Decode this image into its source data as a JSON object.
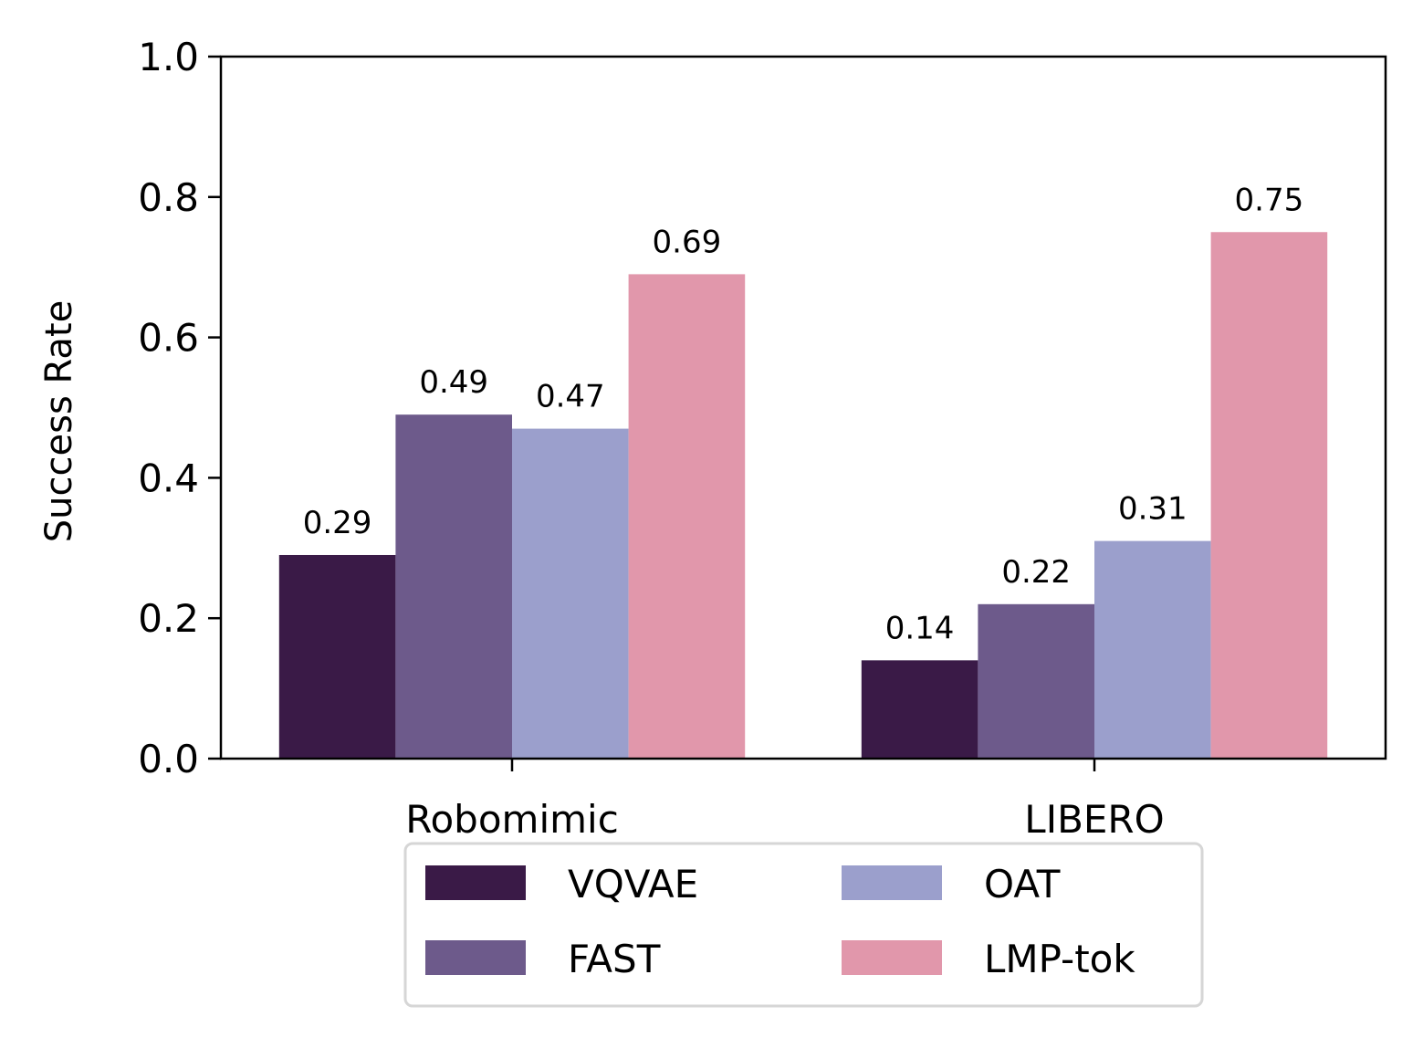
{
  "chart_data": {
    "type": "bar",
    "categories": [
      "Robomimic",
      "LIBERO"
    ],
    "series": [
      {
        "name": "VQVAE",
        "values": [
          0.29,
          0.14
        ],
        "color": "#3a1a47"
      },
      {
        "name": "FAST",
        "values": [
          0.49,
          0.22
        ],
        "color": "#6d5a8b"
      },
      {
        "name": "OAT",
        "values": [
          0.47,
          0.31
        ],
        "color": "#9b9fcc"
      },
      {
        "name": "LMP-tok",
        "values": [
          0.69,
          0.75
        ],
        "color": "#e197ab"
      }
    ],
    "data_labels": [
      [
        "0.29",
        "0.14"
      ],
      [
        "0.49",
        "0.22"
      ],
      [
        "0.47",
        "0.31"
      ],
      [
        "0.69",
        "0.75"
      ]
    ],
    "ylabel": "Success Rate",
    "xlabel": "",
    "ylim": [
      0,
      1.0
    ],
    "yticks": [
      "0.0",
      "0.2",
      "0.4",
      "0.6",
      "0.8",
      "1.0"
    ],
    "ytick_values": [
      0,
      0.2,
      0.4,
      0.6,
      0.8,
      1.0
    ],
    "grid": false,
    "legend_position": "bottom-center",
    "legend_columns": 2
  }
}
